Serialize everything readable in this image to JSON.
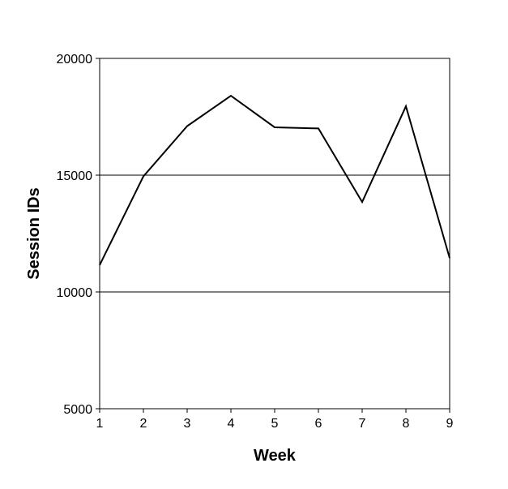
{
  "chart_data": {
    "type": "line",
    "title": "",
    "xlabel": "Week",
    "ylabel": "Session IDs",
    "x": [
      1,
      2,
      3,
      4,
      5,
      6,
      7,
      8,
      9
    ],
    "series": [
      {
        "values": [
          11150,
          14950,
          17100,
          18400,
          17050,
          17000,
          13850,
          17950,
          11450
        ]
      }
    ],
    "xlim": [
      1,
      9
    ],
    "ylim": [
      5000,
      20000
    ],
    "xticks": [
      1,
      2,
      3,
      4,
      5,
      6,
      7,
      8,
      9
    ],
    "yticks": [
      5000,
      10000,
      15000,
      20000
    ],
    "ygrid": [
      10000,
      15000
    ],
    "legend": "none",
    "line_color": "#000000"
  }
}
